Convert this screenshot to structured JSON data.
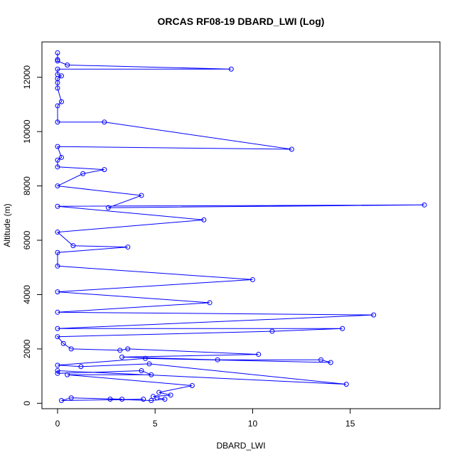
{
  "chart_data": {
    "type": "line",
    "title": "ORCAS RF08-19 DBARD_LWI (Log)",
    "xlabel": "DBARD_LWI",
    "ylabel": "Altitude (m)",
    "xlim": [
      -0.8,
      19.6
    ],
    "ylim": [
      -200,
      13300
    ],
    "x_ticks": [
      0,
      5,
      10,
      15
    ],
    "y_ticks": [
      0,
      2000,
      4000,
      6000,
      8000,
      10000,
      12000
    ],
    "grid": false,
    "legend": "none",
    "series": [
      {
        "color": "#0000ff",
        "marker": "open-circle",
        "points": [
          [
            0.0,
            12900
          ],
          [
            0.0,
            12650
          ],
          [
            0.0,
            12600
          ],
          [
            0.5,
            12450
          ],
          [
            8.9,
            12300
          ],
          [
            0.0,
            12300
          ],
          [
            0.0,
            12100
          ],
          [
            0.2,
            12050
          ],
          [
            0.0,
            11950
          ],
          [
            0.0,
            11800
          ],
          [
            0.0,
            11600
          ],
          [
            0.2,
            11100
          ],
          [
            0.0,
            10950
          ],
          [
            0.0,
            10350
          ],
          [
            2.4,
            10350
          ],
          [
            12.0,
            9350
          ],
          [
            0.0,
            9450
          ],
          [
            0.2,
            9050
          ],
          [
            0.0,
            8950
          ],
          [
            0.0,
            8700
          ],
          [
            2.4,
            8600
          ],
          [
            1.3,
            8450
          ],
          [
            0.0,
            8000
          ],
          [
            4.3,
            7650
          ],
          [
            2.6,
            7200
          ],
          [
            18.8,
            7300
          ],
          [
            0.0,
            7250
          ],
          [
            7.5,
            6750
          ],
          [
            0.0,
            6300
          ],
          [
            0.8,
            5800
          ],
          [
            3.6,
            5750
          ],
          [
            0.0,
            5550
          ],
          [
            0.0,
            5050
          ],
          [
            10.0,
            4550
          ],
          [
            0.0,
            4100
          ],
          [
            7.8,
            3700
          ],
          [
            0.0,
            3350
          ],
          [
            16.2,
            3250
          ],
          [
            0.0,
            2750
          ],
          [
            14.6,
            2750
          ],
          [
            11.0,
            2650
          ],
          [
            0.0,
            2450
          ],
          [
            0.3,
            2200
          ],
          [
            0.7,
            2000
          ],
          [
            3.2,
            1950
          ],
          [
            3.6,
            2000
          ],
          [
            10.3,
            1800
          ],
          [
            3.3,
            1700
          ],
          [
            8.2,
            1600
          ],
          [
            13.5,
            1600
          ],
          [
            14.0,
            1500
          ],
          [
            4.5,
            1650
          ],
          [
            0.0,
            1400
          ],
          [
            1.2,
            1350
          ],
          [
            4.7,
            1450
          ],
          [
            14.8,
            700
          ],
          [
            0.0,
            1200
          ],
          [
            0.0,
            1100
          ],
          [
            4.3,
            1200
          ],
          [
            4.8,
            1050
          ],
          [
            0.5,
            1050
          ],
          [
            6.9,
            650
          ],
          [
            5.2,
            400
          ],
          [
            5.8,
            300
          ],
          [
            4.9,
            250
          ],
          [
            5.1,
            200
          ],
          [
            5.5,
            150
          ],
          [
            4.8,
            100
          ],
          [
            2.7,
            150
          ],
          [
            3.3,
            150
          ],
          [
            0.7,
            200
          ],
          [
            0.2,
            100
          ],
          [
            4.4,
            150
          ]
        ]
      }
    ]
  }
}
